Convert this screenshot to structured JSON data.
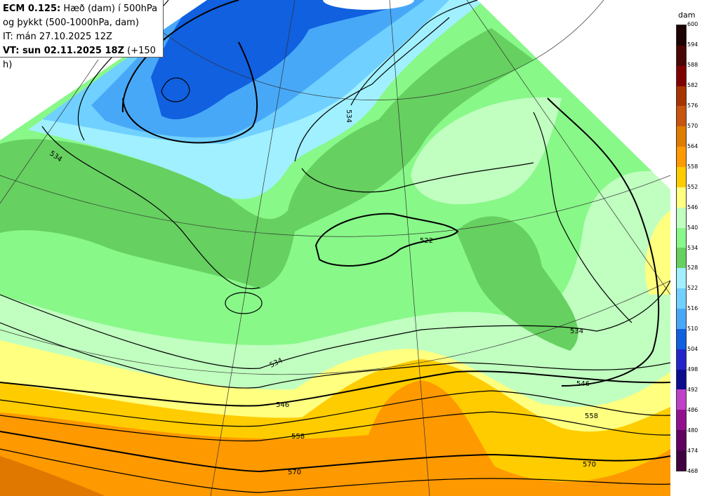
{
  "title": {
    "model": "ECM 0.125:",
    "line1_rest": "Hæð (dam) í 500hPa",
    "line2": "og þykkt (500-1000hPa, dam)",
    "init_time": "IT: mán 27.10.2025 12Z",
    "valid_prefix": "VT: sun 02.11.2025 18Z",
    "valid_suffix": "(+150 h)"
  },
  "colorbar": {
    "unit": "dam",
    "ticks": [
      "600",
      "594",
      "588",
      "582",
      "576",
      "570",
      "564",
      "558",
      "552",
      "546",
      "540",
      "534",
      "528",
      "522",
      "516",
      "510",
      "504",
      "498",
      "492",
      "486",
      "480",
      "474",
      "468"
    ],
    "colors": [
      "#1c0404",
      "#4a0606",
      "#800000",
      "#a63400",
      "#c85410",
      "#e07c00",
      "#ff9a00",
      "#ffcc00",
      "#ffff80",
      "#c0ffc0",
      "#88f888",
      "#66d060",
      "#a0f0ff",
      "#70d0ff",
      "#48a8f8",
      "#1060e0",
      "#2424c8",
      "#0c0c90",
      "#c040c8",
      "#901090",
      "#600060",
      "#400040"
    ]
  },
  "contour_labels": [
    "534",
    "534",
    "522",
    "534",
    "534",
    "546",
    "546",
    "558",
    "558",
    "570",
    "570"
  ]
}
